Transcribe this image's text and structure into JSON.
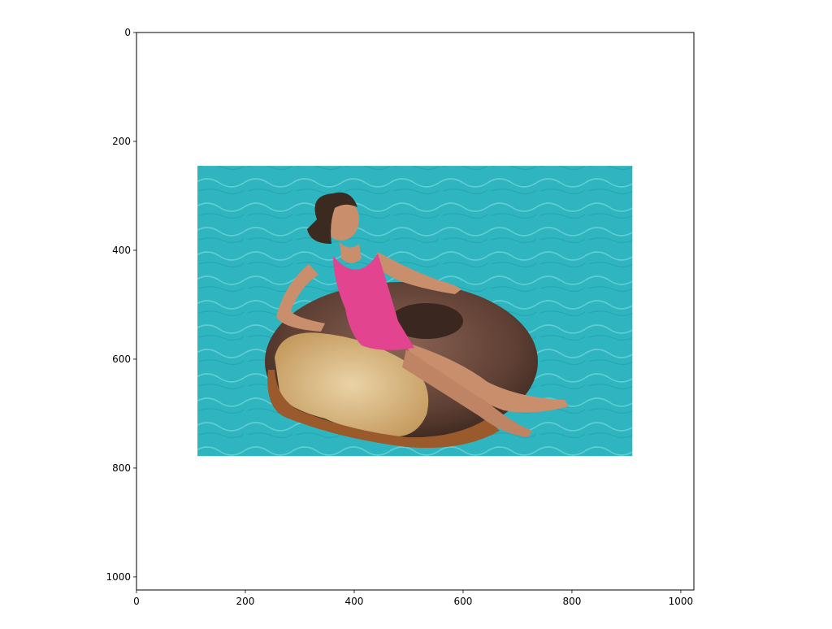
{
  "chart_data": {
    "type": "image",
    "xlim": [
      0,
      1024
    ],
    "ylim": [
      1024,
      0
    ],
    "y_inverted": true,
    "x_ticks": [
      {
        "value": 0,
        "label": "0"
      },
      {
        "value": 200,
        "label": "200"
      },
      {
        "value": 400,
        "label": "400"
      },
      {
        "value": 600,
        "label": "600"
      },
      {
        "value": 800,
        "label": "800"
      },
      {
        "value": 1000,
        "label": "1000"
      }
    ],
    "y_ticks": [
      {
        "value": 0,
        "label": "0"
      },
      {
        "value": 200,
        "label": "200"
      },
      {
        "value": 400,
        "label": "400"
      },
      {
        "value": 600,
        "label": "600"
      },
      {
        "value": 800,
        "label": "800"
      },
      {
        "value": 1000,
        "label": "1000"
      }
    ],
    "image_extent": {
      "x0": 112,
      "x1": 911,
      "y0": 245,
      "y1": 778
    },
    "grid": false,
    "image_content": "woman in a pink swimsuit lounging on a giant bitten chocolate-glazed donut floating in turquoise pool water",
    "colors": {
      "water": "#2fb5bf",
      "water_dark": "#1e9aa6",
      "swimsuit": "#e2448f",
      "glaze": "#6b4a3e",
      "dough": "#d9c08f",
      "skin": "#c98e6c",
      "hair": "#3b2a20"
    }
  }
}
